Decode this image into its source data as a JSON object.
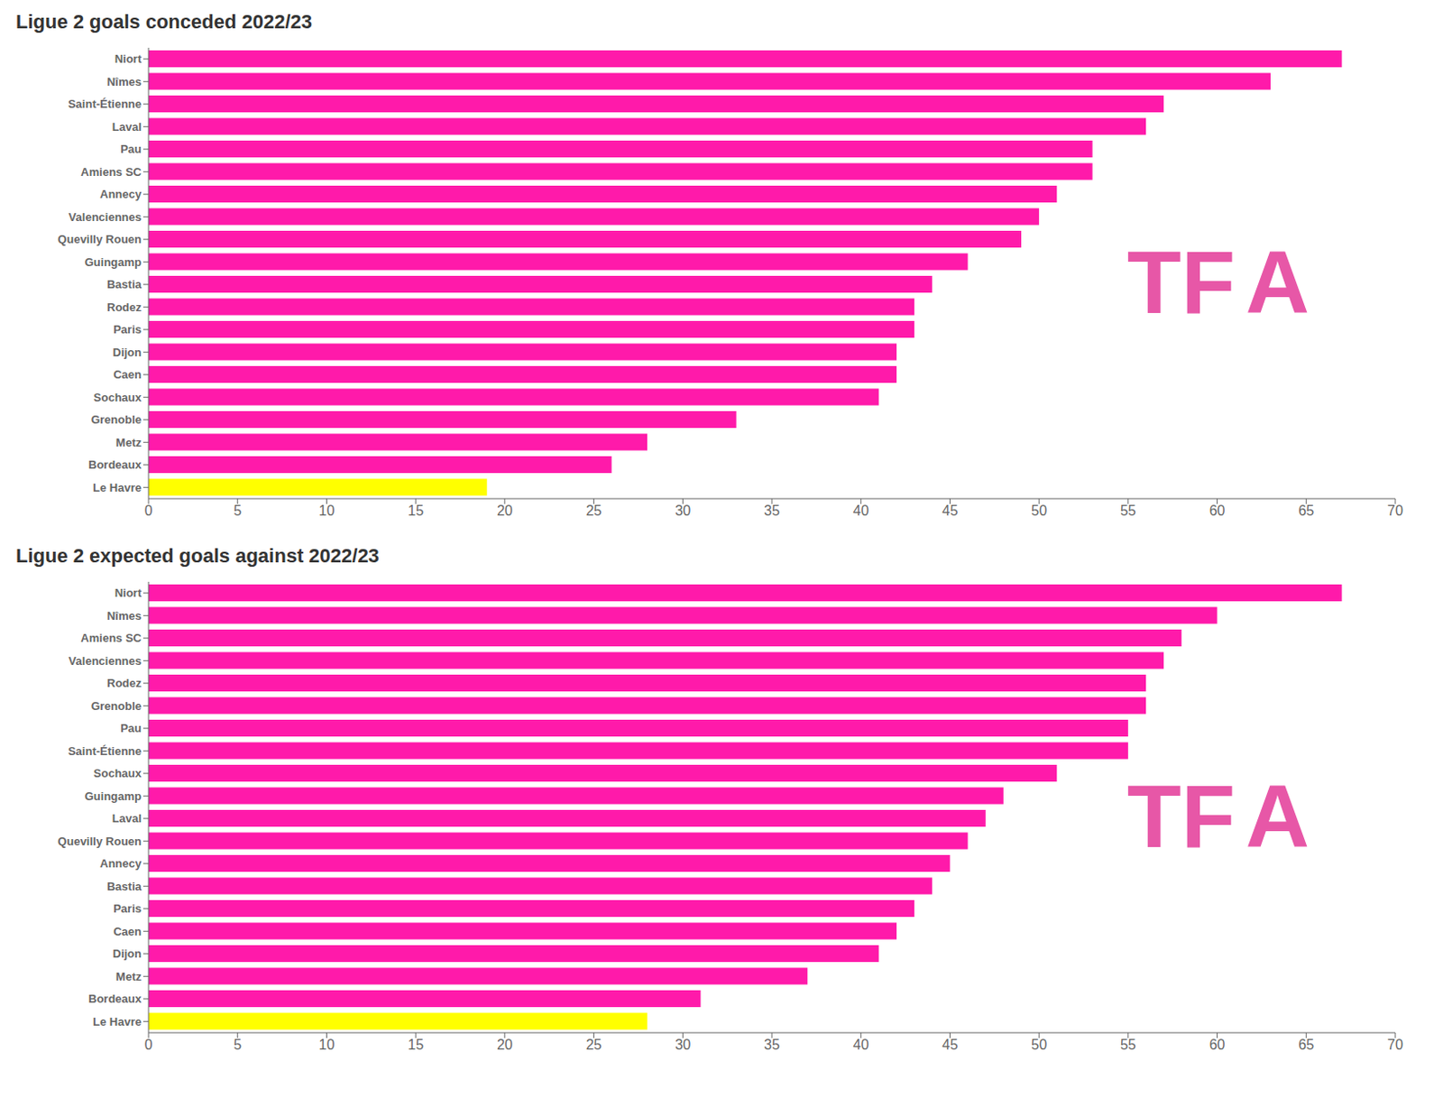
{
  "chart_data": [
    {
      "type": "bar",
      "orientation": "horizontal",
      "title": "Ligue 2 goals conceded 2022/23",
      "categories": [
        "Niort",
        "Nîmes",
        "Saint-Étienne",
        "Laval",
        "Pau",
        "Amiens SC",
        "Annecy",
        "Valenciennes",
        "Quevilly Rouen",
        "Guingamp",
        "Bastia",
        "Rodez",
        "Paris",
        "Dijon",
        "Caen",
        "Sochaux",
        "Grenoble",
        "Metz",
        "Bordeaux",
        "Le Havre"
      ],
      "values": [
        67,
        63,
        57,
        56,
        53,
        53,
        51,
        50,
        49,
        46,
        44,
        43,
        43,
        42,
        42,
        41,
        33,
        28,
        26,
        19
      ],
      "colors": [
        "#ff1aaa",
        "#ff1aaa",
        "#ff1aaa",
        "#ff1aaa",
        "#ff1aaa",
        "#ff1aaa",
        "#ff1aaa",
        "#ff1aaa",
        "#ff1aaa",
        "#ff1aaa",
        "#ff1aaa",
        "#ff1aaa",
        "#ff1aaa",
        "#ff1aaa",
        "#ff1aaa",
        "#ff1aaa",
        "#ff1aaa",
        "#ff1aaa",
        "#ff1aaa",
        "#ffff00"
      ],
      "xlim": [
        0,
        70
      ],
      "xticks": [
        0,
        5,
        10,
        15,
        20,
        25,
        30,
        35,
        40,
        45,
        50,
        55,
        60,
        65,
        70
      ],
      "grid": false,
      "annotations": [
        {
          "text": "TF",
          "color": "#e0208a"
        },
        {
          "text": "A",
          "color": "#e0208a"
        }
      ]
    },
    {
      "type": "bar",
      "orientation": "horizontal",
      "title": "Ligue 2 expected goals against 2022/23",
      "categories": [
        "Niort",
        "Nîmes",
        "Amiens SC",
        "Valenciennes",
        "Rodez",
        "Grenoble",
        "Pau",
        "Saint-Étienne",
        "Sochaux",
        "Guingamp",
        "Laval",
        "Quevilly Rouen",
        "Annecy",
        "Bastia",
        "Paris",
        "Caen",
        "Dijon",
        "Metz",
        "Bordeaux",
        "Le Havre"
      ],
      "values": [
        67,
        60,
        58,
        57,
        56,
        56,
        55,
        55,
        51,
        48,
        47,
        46,
        45,
        44,
        43,
        42,
        41,
        37,
        31,
        28
      ],
      "colors": [
        "#ff1aaa",
        "#ff1aaa",
        "#ff1aaa",
        "#ff1aaa",
        "#ff1aaa",
        "#ff1aaa",
        "#ff1aaa",
        "#ff1aaa",
        "#ff1aaa",
        "#ff1aaa",
        "#ff1aaa",
        "#ff1aaa",
        "#ff1aaa",
        "#ff1aaa",
        "#ff1aaa",
        "#ff1aaa",
        "#ff1aaa",
        "#ff1aaa",
        "#ff1aaa",
        "#ffff00"
      ],
      "xlim": [
        0,
        70
      ],
      "xticks": [
        0,
        5,
        10,
        15,
        20,
        25,
        30,
        35,
        40,
        45,
        50,
        55,
        60,
        65,
        70
      ],
      "grid": false,
      "annotations": [
        {
          "text": "TF",
          "color": "#e0208a"
        },
        {
          "text": "A",
          "color": "#e0208a"
        }
      ]
    }
  ]
}
